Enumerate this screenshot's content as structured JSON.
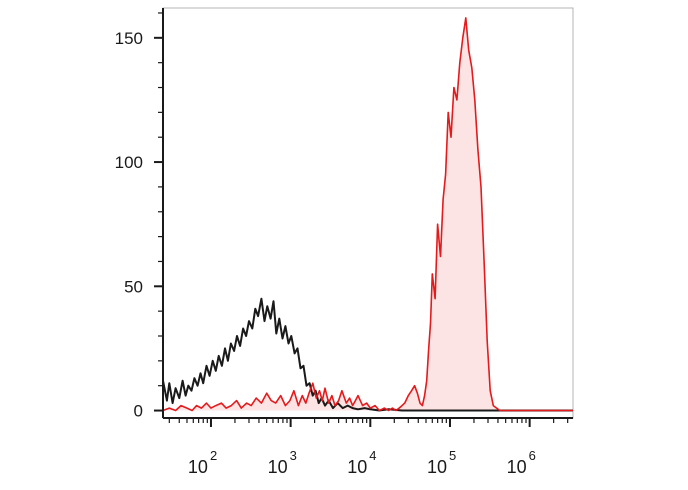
{
  "chart_data": {
    "type": "area",
    "title": "",
    "xlabel": "",
    "ylabel": "",
    "x_scale": "log",
    "xlim": [
      25,
      3500000
    ],
    "ylim": [
      -3,
      162
    ],
    "grid": false,
    "y_ticks": [
      {
        "value": 0,
        "label": "0"
      },
      {
        "value": 50,
        "label": "50"
      },
      {
        "value": 100,
        "label": "100"
      },
      {
        "value": 150,
        "label": "150"
      }
    ],
    "x_ticks": [
      {
        "value": 100,
        "base": "10",
        "exp": "2"
      },
      {
        "value": 1000,
        "base": "10",
        "exp": "3"
      },
      {
        "value": 10000,
        "base": "10",
        "exp": "4"
      },
      {
        "value": 100000,
        "base": "10",
        "exp": "5"
      },
      {
        "value": 1000000,
        "base": "10",
        "exp": "6"
      }
    ],
    "colors": {
      "control": "#1a1a1a",
      "stained_line": "#e41a1c",
      "stained_fill": "#fde4e4"
    },
    "series": [
      {
        "key": "control",
        "filled": false,
        "x": [
          25,
          28,
          30,
          33,
          36,
          40,
          44,
          48,
          52,
          57,
          62,
          68,
          74,
          80,
          88,
          96,
          105,
          115,
          125,
          137,
          150,
          163,
          178,
          195,
          212,
          232,
          253,
          276,
          300,
          330,
          360,
          390,
          430,
          470,
          510,
          560,
          610,
          660,
          720,
          790,
          860,
          940,
          1020,
          1120,
          1220,
          1330,
          1450,
          1580,
          1730,
          1890,
          2060,
          2250,
          2450,
          2700,
          3000,
          3400,
          3900,
          4500,
          5200,
          6000,
          7000,
          8500,
          10000,
          13000,
          17000,
          25000,
          40000,
          70000,
          150000,
          400000,
          1000000,
          3500000
        ],
        "y": [
          12,
          4,
          11,
          3,
          9,
          5,
          12,
          6,
          10,
          8,
          13,
          10,
          15,
          11,
          18,
          14,
          20,
          16,
          22,
          18,
          25,
          20,
          27,
          24,
          30,
          26,
          33,
          30,
          36,
          33,
          41,
          38,
          45,
          36,
          42,
          37,
          44,
          31,
          37,
          29,
          34,
          27,
          30,
          23,
          25,
          17,
          18,
          10,
          11,
          6,
          8,
          3,
          5,
          2,
          4,
          1,
          3,
          1,
          2,
          1,
          0.5,
          1,
          0.5,
          0,
          0.5,
          0,
          0,
          0,
          0,
          0,
          0,
          0
        ]
      },
      {
        "key": "stained",
        "filled": true,
        "x": [
          25,
          30,
          36,
          42,
          50,
          58,
          66,
          76,
          88,
          100,
          115,
          135,
          155,
          180,
          210,
          240,
          280,
          320,
          370,
          430,
          500,
          570,
          650,
          750,
          860,
          980,
          1100,
          1250,
          1400,
          1550,
          1700,
          1900,
          2100,
          2300,
          2500,
          2700,
          3000,
          3300,
          3600,
          4000,
          4400,
          5000,
          5500,
          6000,
          6500,
          7000,
          8000,
          9000,
          10000,
          11500,
          13000,
          15000,
          17000,
          19000,
          21000,
          23000,
          25000,
          27000,
          30000,
          33000,
          36000,
          39000,
          42000,
          45000,
          48000,
          51000,
          54000,
          57000,
          60000,
          65000,
          70000,
          76000,
          82000,
          88000,
          95000,
          103000,
          112000,
          122000,
          133000,
          145000,
          158000,
          172000,
          188000,
          205000,
          224000,
          245000,
          268000,
          293000,
          320000,
          350000,
          385000,
          425000,
          470000,
          520000,
          580000,
          650000,
          750000,
          1000000,
          1500000,
          3500000
        ],
        "y": [
          0,
          1,
          0,
          2,
          1,
          0,
          2,
          1,
          3,
          1,
          2,
          3,
          1,
          2,
          4,
          1,
          3,
          2,
          5,
          3,
          7,
          4,
          3,
          6,
          2,
          4,
          8,
          2,
          6,
          3,
          7,
          11,
          5,
          8,
          4,
          9,
          3,
          6,
          2,
          4,
          8,
          3,
          5,
          2,
          4,
          6,
          2,
          3,
          1,
          2,
          0,
          1,
          0,
          1,
          0,
          1,
          2,
          3,
          6,
          8,
          10,
          7,
          3,
          2,
          6,
          12,
          25,
          35,
          55,
          45,
          75,
          62,
          85,
          95,
          120,
          110,
          130,
          125,
          140,
          150,
          158,
          145,
          138,
          125,
          105,
          90,
          60,
          28,
          8,
          2,
          1,
          0,
          0,
          0,
          0,
          0,
          0,
          0,
          0,
          0
        ]
      }
    ]
  }
}
